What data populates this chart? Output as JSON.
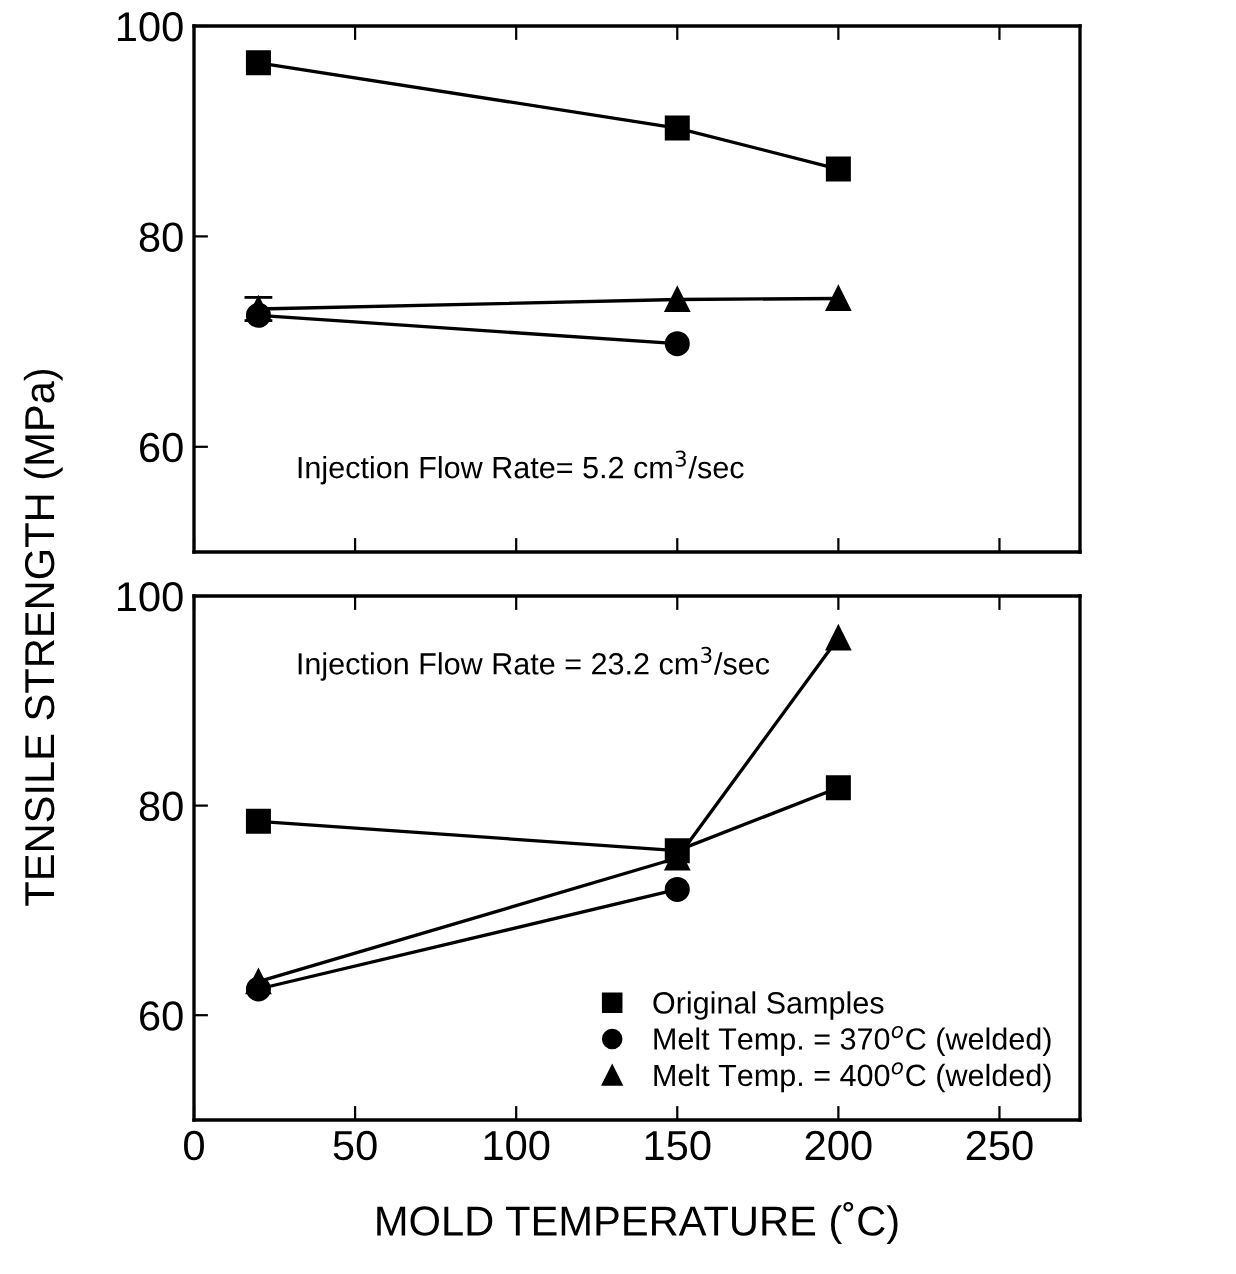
{
  "chart_data": [
    {
      "type": "line",
      "xlim": [
        0,
        275
      ],
      "xticks": [
        0,
        50,
        100,
        150,
        200,
        250
      ],
      "ylim": [
        50,
        100
      ],
      "yticks": [
        60,
        80,
        100
      ],
      "tick_labels": "y",
      "grid": false,
      "legend": false,
      "annotations": [
        {
          "text": "Injection Flow Rate= 5.2 cm$^{3}$/sec"
        }
      ],
      "series": [
        {
          "color": "#000000",
          "marker": "square",
          "x": [
            20,
            150,
            200
          ],
          "values": [
            96.5,
            90.3,
            86.4
          ]
        },
        {
          "color": "#000000",
          "marker": "circle",
          "x": [
            20,
            150
          ],
          "values": [
            72.5,
            69.8
          ]
        },
        {
          "color": "#000000",
          "marker": "triangle",
          "x": [
            20,
            150,
            200
          ],
          "values": [
            73.1,
            74.0,
            74.1
          ],
          "errors": [
            1.1,
            null,
            null
          ]
        }
      ]
    },
    {
      "type": "line",
      "xlabel": "MOLD TEMPERATURE (˚C)",
      "ylabel": "TENSILE STRENGTH (MPa)",
      "xlim": [
        0,
        275
      ],
      "xticks": [
        0,
        50,
        100,
        150,
        200,
        250
      ],
      "ylim": [
        50,
        100
      ],
      "yticks": [
        60,
        80,
        100
      ],
      "grid": false,
      "legend": "bottom right",
      "annotations": [
        {
          "text": "Injection Flow Rate = 23.2 cm$^{3}$/sec"
        }
      ],
      "series": [
        {
          "name": "Original Samples",
          "color": "#000000",
          "marker": "square",
          "x": [
            20,
            150,
            200
          ],
          "values": [
            78.5,
            75.7,
            81.7
          ]
        },
        {
          "name": "Melt Temp. = 370$^{o}$C (welded)",
          "color": "#000000",
          "marker": "circle",
          "x": [
            20,
            150
          ],
          "values": [
            62.5,
            72.0
          ]
        },
        {
          "name": "Melt Temp. = 400$^{o}$C (welded)",
          "color": "#000000",
          "marker": "triangle",
          "x": [
            20,
            150,
            200
          ],
          "values": [
            63.2,
            75.0,
            96.0
          ]
        }
      ]
    }
  ]
}
